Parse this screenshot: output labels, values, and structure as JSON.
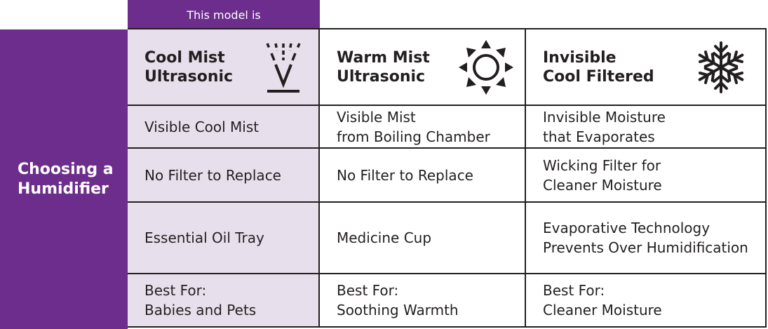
{
  "badge": "This model is",
  "side_title": "Choosing a\nHumidifier",
  "columns": [
    {
      "title": "Cool Mist\nUltrasonic",
      "icon": "cool-mist-icon"
    },
    {
      "title": "Warm Mist\nUltrasonic",
      "icon": "sun-icon"
    },
    {
      "title": "Invisible\nCool Filtered",
      "icon": "snowflake-icon"
    }
  ],
  "rows": [
    [
      "Visible Cool Mist",
      "Visible Mist\nfrom Boiling Chamber",
      "Invisible Moisture\nthat Evaporates"
    ],
    [
      "No Filter to Replace",
      "No Filter to Replace",
      "Wicking Filter for\nCleaner Moisture"
    ],
    [
      "Essential Oil Tray",
      "Medicine Cup",
      "Evaporative Technology\nPrevents Over Humidification"
    ],
    [
      "Best For:\nBabies and Pets",
      "Best For:\nSoothing Warmth",
      "Best For:\nCleaner Moisture"
    ]
  ],
  "colors": {
    "purple": "#6c2d8c",
    "shade": "#e7e0ec",
    "line": "#231f20"
  }
}
